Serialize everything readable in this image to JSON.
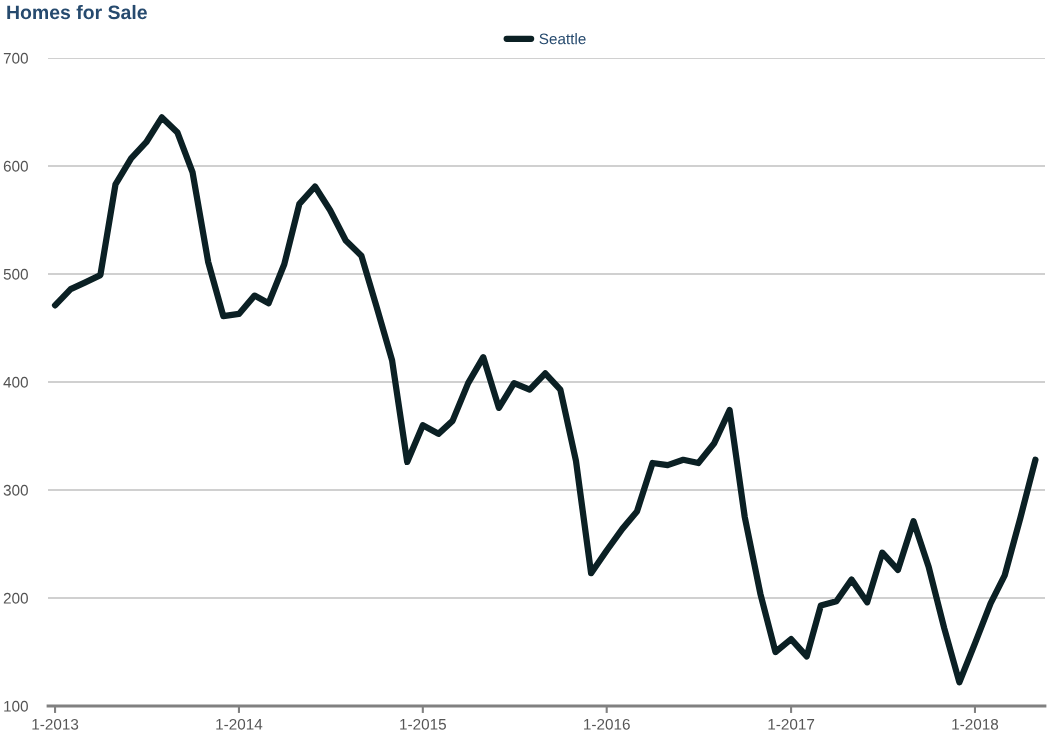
{
  "chart_data": {
    "type": "line",
    "title": "Homes for Sale",
    "x": [
      "2013-01",
      "2013-02",
      "2013-03",
      "2013-04",
      "2013-05",
      "2013-06",
      "2013-07",
      "2013-08",
      "2013-09",
      "2013-10",
      "2013-11",
      "2013-12",
      "2014-01",
      "2014-02",
      "2014-03",
      "2014-04",
      "2014-05",
      "2014-06",
      "2014-07",
      "2014-08",
      "2014-09",
      "2014-10",
      "2014-11",
      "2014-12",
      "2015-01",
      "2015-02",
      "2015-03",
      "2015-04",
      "2015-05",
      "2015-06",
      "2015-07",
      "2015-08",
      "2015-09",
      "2015-10",
      "2015-11",
      "2015-12",
      "2016-01",
      "2016-02",
      "2016-03",
      "2016-04",
      "2016-05",
      "2016-06",
      "2016-07",
      "2016-08",
      "2016-09",
      "2016-10",
      "2016-11",
      "2016-12",
      "2017-01",
      "2017-02",
      "2017-03",
      "2017-04",
      "2017-05",
      "2017-06",
      "2017-07",
      "2017-08",
      "2017-09",
      "2017-10",
      "2017-11",
      "2017-12",
      "2018-01",
      "2018-02",
      "2018-03",
      "2018-04",
      "2018-05"
    ],
    "series": [
      {
        "name": "Seattle",
        "color": "#0b2024",
        "values": [
          471,
          486,
          492,
          499,
          583,
          607,
          622,
          645,
          631,
          594,
          511,
          461,
          463,
          480,
          473,
          509,
          565,
          581,
          559,
          531,
          517,
          470,
          420,
          326,
          360,
          352,
          364,
          399,
          423,
          376,
          399,
          393,
          408,
          393,
          327,
          223,
          244,
          264,
          280,
          325,
          323,
          328,
          325,
          343,
          374,
          275,
          204,
          150,
          162,
          146,
          193,
          197,
          217,
          196,
          242,
          226,
          271,
          229,
          172,
          122,
          158,
          195,
          221,
          274,
          328
        ]
      }
    ],
    "xlim": [
      "2012-12-18",
      "2018-05-20"
    ],
    "xticks": [
      {
        "value": "2013-01",
        "label": "1-2013"
      },
      {
        "value": "2014-01",
        "label": "1-2014"
      },
      {
        "value": "2015-01",
        "label": "1-2015"
      },
      {
        "value": "2016-01",
        "label": "1-2016"
      },
      {
        "value": "2017-01",
        "label": "1-2017"
      },
      {
        "value": "2018-01",
        "label": "1-2018"
      }
    ],
    "ylim": [
      100,
      700
    ],
    "yticks": [
      100,
      200,
      300,
      400,
      500,
      600,
      700
    ],
    "grid": "y",
    "legend": "top",
    "marker": "none",
    "line_style": "solid"
  }
}
